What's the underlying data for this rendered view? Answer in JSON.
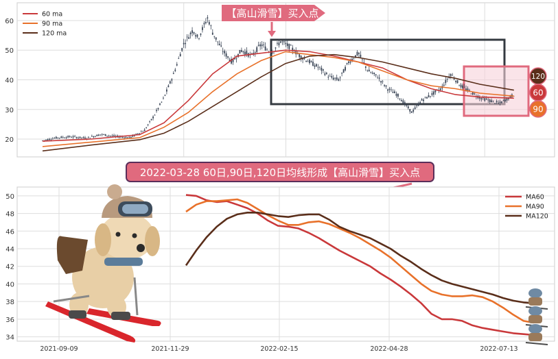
{
  "colors": {
    "ma60": "#c9383a",
    "ma90": "#e8712a",
    "ma120": "#5a2e1a",
    "candle": "#3a4556",
    "banner_fill": "#e06a7e",
    "highlight_box": "#e06a7e",
    "highlight_fill": "#f6d2da",
    "dark_box": "#343a40",
    "grid": "#dddddd"
  },
  "top_panel": {
    "banner": "【高山滑雪】买入点",
    "badges": [
      "120",
      "60",
      "90"
    ]
  },
  "middle_banner": "2022-03-28 60日,90日,120日均线形成【高山滑雪】买入点",
  "chart_data": [
    {
      "type": "line",
      "title": "",
      "y_ticks": [
        20,
        30,
        40,
        50,
        60
      ],
      "ylim": [
        14,
        66
      ],
      "x_range": [
        0,
        100
      ],
      "legend": "top-left",
      "legend_entries": [
        "60 ma",
        "90 ma",
        "120 ma"
      ],
      "price": [
        [
          0,
          19.5
        ],
        [
          3,
          20.5
        ],
        [
          6,
          20.8
        ],
        [
          9,
          20.3
        ],
        [
          12,
          21.6
        ],
        [
          15,
          20.9
        ],
        [
          18,
          20.5
        ],
        [
          21,
          23
        ],
        [
          23,
          28
        ],
        [
          25,
          34
        ],
        [
          27,
          42
        ],
        [
          29,
          52
        ],
        [
          31,
          57
        ],
        [
          32,
          54
        ],
        [
          34,
          61
        ],
        [
          35,
          56
        ],
        [
          37,
          50
        ],
        [
          39,
          46
        ],
        [
          41,
          50
        ],
        [
          43,
          48
        ],
        [
          45,
          52
        ],
        [
          47,
          49
        ],
        [
          49,
          53
        ],
        [
          51,
          51
        ],
        [
          53,
          48
        ],
        [
          55,
          46
        ],
        [
          57,
          44
        ],
        [
          59,
          41
        ],
        [
          61,
          40
        ],
        [
          63,
          46
        ],
        [
          65,
          49
        ],
        [
          67,
          43
        ],
        [
          69,
          41
        ],
        [
          71,
          37
        ],
        [
          73,
          35
        ],
        [
          75,
          31
        ],
        [
          76,
          29
        ],
        [
          78,
          33
        ],
        [
          80,
          35
        ],
        [
          82,
          37
        ],
        [
          84,
          42
        ],
        [
          86,
          38
        ],
        [
          88,
          36
        ],
        [
          90,
          34
        ],
        [
          92,
          33
        ],
        [
          94,
          32
        ],
        [
          96,
          34
        ],
        [
          97,
          35
        ]
      ],
      "series": [
        {
          "name": "60 ma",
          "values": [
            [
              0,
              19.3
            ],
            [
              10,
              20
            ],
            [
              20,
              21.5
            ],
            [
              25,
              25.5
            ],
            [
              30,
              33
            ],
            [
              35,
              42
            ],
            [
              40,
              48
            ],
            [
              45,
              49
            ],
            [
              50,
              50
            ],
            [
              55,
              49.5
            ],
            [
              60,
              48
            ],
            [
              65,
              46
            ],
            [
              70,
              44
            ],
            [
              75,
              40
            ],
            [
              80,
              37
            ],
            [
              85,
              35
            ],
            [
              90,
              34.2
            ],
            [
              97,
              33.8
            ]
          ]
        },
        {
          "name": "90 ma",
          "values": [
            [
              0,
              17.5
            ],
            [
              10,
              19
            ],
            [
              20,
              20.5
            ],
            [
              25,
              24
            ],
            [
              30,
              29
            ],
            [
              35,
              36
            ],
            [
              40,
              42
            ],
            [
              45,
              46.5
            ],
            [
              50,
              49.5
            ],
            [
              55,
              48.5
            ],
            [
              60,
              47.5
            ],
            [
              65,
              46
            ],
            [
              70,
              43
            ],
            [
              75,
              40
            ],
            [
              80,
              38
            ],
            [
              85,
              37
            ],
            [
              90,
              35.5
            ],
            [
              97,
              34.5
            ]
          ]
        },
        {
          "name": "120 ma",
          "values": [
            [
              0,
              16
            ],
            [
              10,
              18
            ],
            [
              20,
              19.8
            ],
            [
              25,
              22
            ],
            [
              30,
              26
            ],
            [
              35,
              31
            ],
            [
              40,
              36
            ],
            [
              45,
              41
            ],
            [
              50,
              45.5
            ],
            [
              55,
              48
            ],
            [
              60,
              48.5
            ],
            [
              65,
              47.5
            ],
            [
              70,
              46
            ],
            [
              75,
              44
            ],
            [
              80,
              42
            ],
            [
              85,
              40.5
            ],
            [
              90,
              38.5
            ],
            [
              97,
              36.5
            ]
          ]
        }
      ]
    },
    {
      "type": "line",
      "title": "",
      "categories": [
        "2021-09-09",
        "2021-11-29",
        "2022-02-15",
        "2022-04-28",
        "2022-07-13"
      ],
      "y_ticks": [
        34,
        36,
        38,
        40,
        42,
        44,
        46,
        48,
        50
      ],
      "ylim": [
        33.5,
        51
      ],
      "x_range": [
        0,
        100
      ],
      "legend": "top-right",
      "series": [
        {
          "name": "MA60",
          "values": [
            [
              29,
              50.1
            ],
            [
              31,
              50
            ],
            [
              33,
              49.5
            ],
            [
              35,
              49.3
            ],
            [
              37,
              49.4
            ],
            [
              39,
              49
            ],
            [
              41,
              48.6
            ],
            [
              43,
              48
            ],
            [
              45,
              47.2
            ],
            [
              47,
              46.6
            ],
            [
              49,
              46.5
            ],
            [
              51,
              46.3
            ],
            [
              53,
              45.8
            ],
            [
              55,
              45.2
            ],
            [
              57,
              44.5
            ],
            [
              59,
              43.8
            ],
            [
              61,
              43.2
            ],
            [
              63,
              42.6
            ],
            [
              65,
              42
            ],
            [
              67,
              41.2
            ],
            [
              69,
              40.5
            ],
            [
              71,
              39.7
            ],
            [
              73,
              38.8
            ],
            [
              75,
              37.8
            ],
            [
              77,
              36.6
            ],
            [
              79,
              36
            ],
            [
              81,
              36
            ],
            [
              83,
              35.8
            ],
            [
              85,
              35.3
            ],
            [
              87,
              35
            ],
            [
              89,
              34.8
            ],
            [
              91,
              34.6
            ],
            [
              93,
              34.4
            ],
            [
              95,
              34.3
            ],
            [
              97,
              34.2
            ]
          ]
        },
        {
          "name": "MA90",
          "values": [
            [
              29,
              48.2
            ],
            [
              31,
              49
            ],
            [
              33,
              49.4
            ],
            [
              35,
              49.4
            ],
            [
              37,
              49.5
            ],
            [
              39,
              49.6
            ],
            [
              41,
              49.2
            ],
            [
              43,
              48.5
            ],
            [
              45,
              47.8
            ],
            [
              47,
              47.2
            ],
            [
              49,
              46.7
            ],
            [
              51,
              46.7
            ],
            [
              53,
              47
            ],
            [
              55,
              47.1
            ],
            [
              57,
              46.8
            ],
            [
              59,
              46.3
            ],
            [
              61,
              45.8
            ],
            [
              63,
              45.2
            ],
            [
              65,
              44.5
            ],
            [
              67,
              43.8
            ],
            [
              69,
              43
            ],
            [
              71,
              42
            ],
            [
              73,
              41
            ],
            [
              75,
              40
            ],
            [
              77,
              39.2
            ],
            [
              79,
              38.8
            ],
            [
              81,
              38.6
            ],
            [
              83,
              38.6
            ],
            [
              85,
              38.7
            ],
            [
              87,
              38.5
            ],
            [
              89,
              38
            ],
            [
              91,
              37.3
            ],
            [
              93,
              36.5
            ],
            [
              95,
              35.8
            ],
            [
              97,
              35.6
            ]
          ]
        },
        {
          "name": "MA120",
          "values": [
            [
              29,
              42.1
            ],
            [
              31,
              43.8
            ],
            [
              33,
              45.3
            ],
            [
              35,
              46.5
            ],
            [
              37,
              47.4
            ],
            [
              39,
              47.9
            ],
            [
              41,
              48.1
            ],
            [
              43,
              48.1
            ],
            [
              45,
              47.9
            ],
            [
              47,
              47.7
            ],
            [
              49,
              47.6
            ],
            [
              51,
              47.8
            ],
            [
              53,
              47.9
            ],
            [
              55,
              47.9
            ],
            [
              57,
              47.3
            ],
            [
              59,
              46.5
            ],
            [
              61,
              46
            ],
            [
              63,
              45.6
            ],
            [
              65,
              45.2
            ],
            [
              67,
              44.6
            ],
            [
              69,
              44
            ],
            [
              71,
              43.2
            ],
            [
              73,
              42.5
            ],
            [
              75,
              41.7
            ],
            [
              77,
              41
            ],
            [
              79,
              40.4
            ],
            [
              81,
              40
            ],
            [
              83,
              39.7
            ],
            [
              85,
              39.4
            ],
            [
              87,
              39.1
            ],
            [
              89,
              38.8
            ],
            [
              91,
              38.4
            ],
            [
              93,
              38.1
            ],
            [
              95,
              37.9
            ],
            [
              97,
              37.8
            ]
          ]
        }
      ]
    }
  ]
}
